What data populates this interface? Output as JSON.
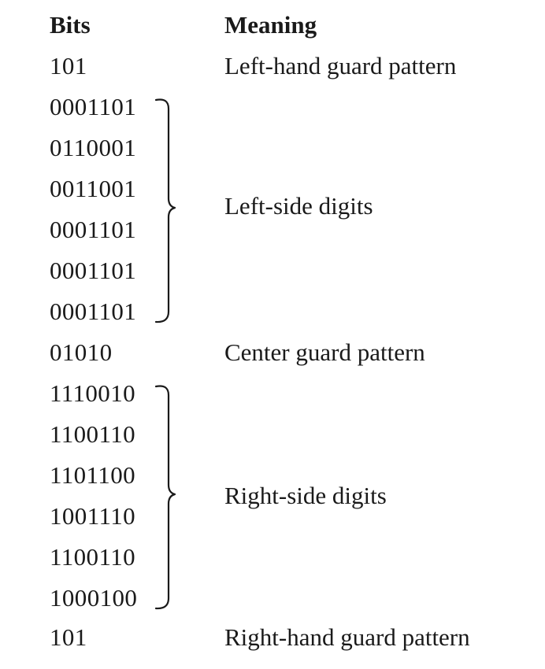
{
  "header": {
    "bits": "Bits",
    "meaning": "Meaning"
  },
  "rows": [
    {
      "bits": "101",
      "meaning": "Left-hand guard pattern"
    },
    {
      "bits": "0001101"
    },
    {
      "bits": "0110001"
    },
    {
      "bits": "0011001"
    },
    {
      "bits": "0001101"
    },
    {
      "bits": "0001101"
    },
    {
      "bits": "0001101"
    },
    {
      "bits": "01010",
      "meaning": "Center guard pattern"
    },
    {
      "bits": "1110010"
    },
    {
      "bits": "1100110"
    },
    {
      "bits": "1101100"
    },
    {
      "bits": "1001110"
    },
    {
      "bits": "1100110"
    },
    {
      "bits": "1000100"
    },
    {
      "bits": "101",
      "meaning": "Right-hand guard pattern"
    }
  ],
  "groups": {
    "left": {
      "meaning": "Left-side digits"
    },
    "right": {
      "meaning": "Right-side digits"
    }
  }
}
